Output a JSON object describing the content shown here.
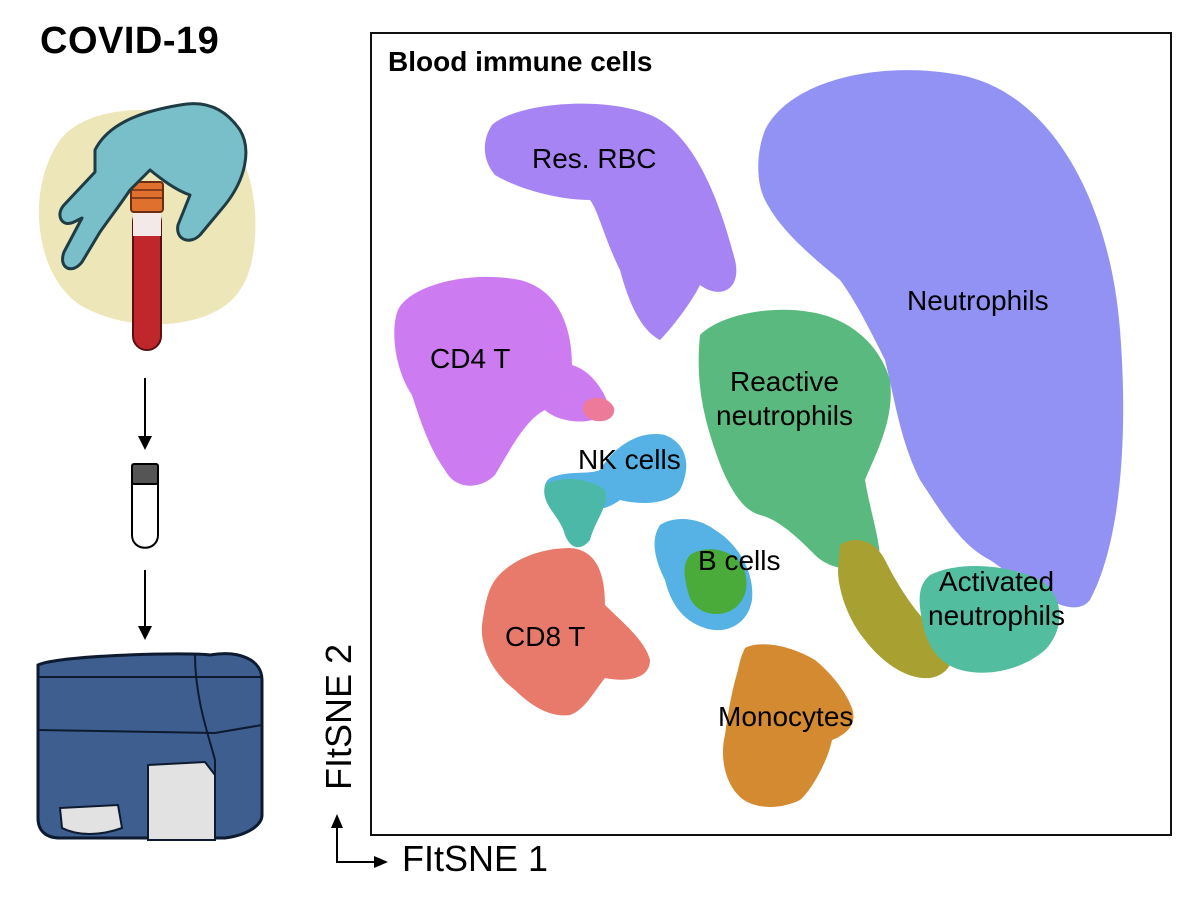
{
  "left_panel": {
    "title": "COVID-19"
  },
  "plot": {
    "title": "Blood immune cells",
    "x_axis_label": "FItSNE 1",
    "y_axis_label": "FItSNE 2",
    "clusters": [
      {
        "label": "Res. RBC",
        "color": "#a684f4"
      },
      {
        "label": "Neutrophils",
        "color": "#9292f5"
      },
      {
        "label": "CD4 T",
        "color": "#cc7cf0"
      },
      {
        "label": "Reactive\nneutrophils",
        "color": "#5ab97e"
      },
      {
        "label": "NK cells",
        "color": "#56b2e4"
      },
      {
        "label": "B cells",
        "color": "#4aaa3a"
      },
      {
        "label": "Activated\nneutrophils",
        "color": "#52bd9f"
      },
      {
        "label": "CD8 T",
        "color": "#e87a6c"
      },
      {
        "label": "Monocytes",
        "color": "#d48a30"
      }
    ]
  }
}
